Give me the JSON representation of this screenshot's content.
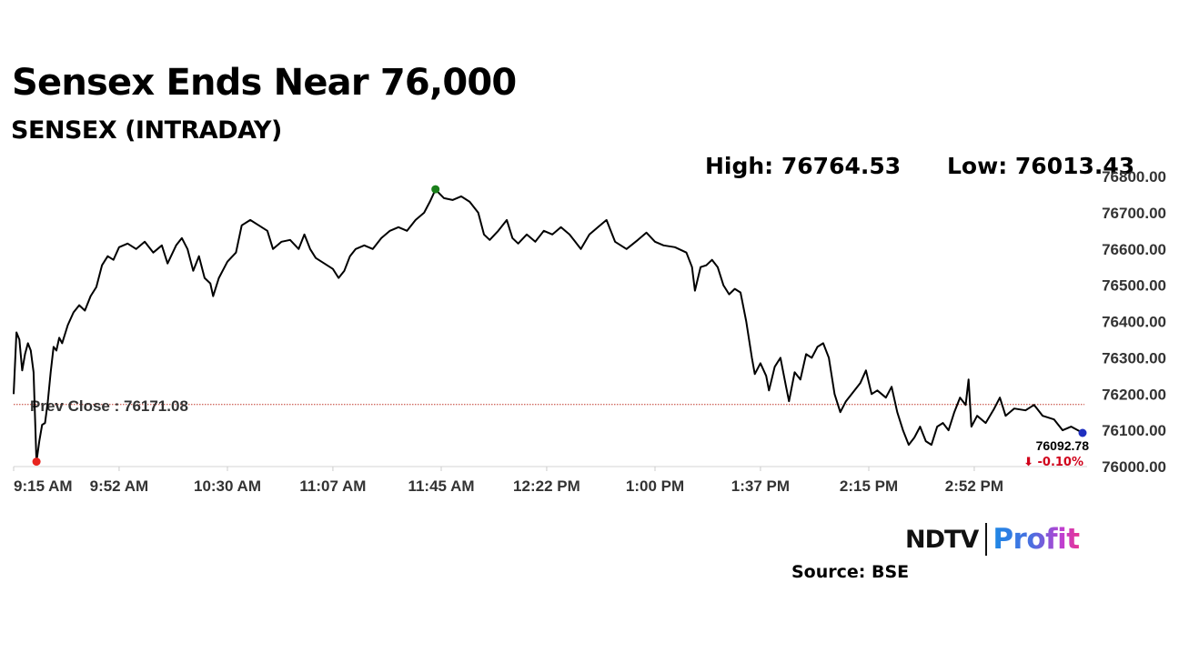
{
  "title": "Sensex Ends Near 76,000",
  "subtitle": "SENSEX (INTRADAY)",
  "stats": {
    "high": "High: 76764.53",
    "low": "Low: 76013.43"
  },
  "source": "Source: BSE",
  "logo": {
    "ndtv": "NDTV",
    "profit": "Profit"
  },
  "colors": {
    "line": "#000000",
    "prev_close": "#c0392b",
    "high_marker": "#1a7f1a",
    "low_marker": "#e8251f",
    "last_marker": "#1f2fbf",
    "change_negative": "#d0021b",
    "axis_text": "#333333"
  },
  "chart_data": {
    "type": "line",
    "title": "SENSEX (INTRADAY)",
    "xlabel": "",
    "ylabel": "",
    "x_ticks": [
      "9:15 AM",
      "9:52 AM",
      "10:30 AM",
      "11:07 AM",
      "11:45 AM",
      "12:22 PM",
      "1:00 PM",
      "1:37 PM",
      "2:15 PM",
      "2:52 PM"
    ],
    "y_ticks": [
      "76000.00",
      "76100.00",
      "76200.00",
      "76300.00",
      "76400.00",
      "76500.00",
      "76600.00",
      "76700.00",
      "76800.00"
    ],
    "ylim": [
      76000,
      76800
    ],
    "x_range": [
      "9:15 AM",
      "3:30 PM"
    ],
    "grid": false,
    "prev_close": 76171.08,
    "prev_close_label": "Prev Close : 76171.08",
    "high": 76764.53,
    "high_time": "11:43 AM",
    "low": 76013.43,
    "low_time": "9:23 AM",
    "last_value": 76092.78,
    "last_value_label": "76092.78",
    "change_label": "⬇ -0.10%",
    "series": [
      {
        "points": [
          [
            "9:15 AM",
            76200
          ],
          [
            "9:16 AM",
            76370
          ],
          [
            "9:17 AM",
            76350
          ],
          [
            "9:18 AM",
            76265
          ],
          [
            "9:19 AM",
            76310
          ],
          [
            "9:20 AM",
            76340
          ],
          [
            "9:21 AM",
            76320
          ],
          [
            "9:22 AM",
            76260
          ],
          [
            "9:23 AM",
            76013
          ],
          [
            "9:24 AM",
            76070
          ],
          [
            "9:25 AM",
            76115
          ],
          [
            "9:26 AM",
            76120
          ],
          [
            "9:27 AM",
            76180
          ],
          [
            "9:28 AM",
            76260
          ],
          [
            "9:29 AM",
            76330
          ],
          [
            "9:30 AM",
            76320
          ],
          [
            "9:31 AM",
            76355
          ],
          [
            "9:32 AM",
            76340
          ],
          [
            "9:34 AM",
            76390
          ],
          [
            "9:36 AM",
            76425
          ],
          [
            "9:38 AM",
            76445
          ],
          [
            "9:40 AM",
            76430
          ],
          [
            "9:42 AM",
            76470
          ],
          [
            "9:44 AM",
            76495
          ],
          [
            "9:46 AM",
            76555
          ],
          [
            "9:48 AM",
            76580
          ],
          [
            "9:50 AM",
            76570
          ],
          [
            "9:52 AM",
            76605
          ],
          [
            "9:55 AM",
            76615
          ],
          [
            "9:58 AM",
            76600
          ],
          [
            "10:01 AM",
            76620
          ],
          [
            "10:04 AM",
            76590
          ],
          [
            "10:07 AM",
            76610
          ],
          [
            "10:09 AM",
            76560
          ],
          [
            "10:12 AM",
            76610
          ],
          [
            "10:14 AM",
            76630
          ],
          [
            "10:16 AM",
            76600
          ],
          [
            "10:18 AM",
            76540
          ],
          [
            "10:20 AM",
            76580
          ],
          [
            "10:22 AM",
            76520
          ],
          [
            "10:24 AM",
            76505
          ],
          [
            "10:25 AM",
            76470
          ],
          [
            "10:27 AM",
            76520
          ],
          [
            "10:30 AM",
            76565
          ],
          [
            "10:33 AM",
            76590
          ],
          [
            "10:35 AM",
            76665
          ],
          [
            "10:38 AM",
            76680
          ],
          [
            "10:41 AM",
            76665
          ],
          [
            "10:44 AM",
            76650
          ],
          [
            "10:46 AM",
            76600
          ],
          [
            "10:49 AM",
            76620
          ],
          [
            "10:52 AM",
            76625
          ],
          [
            "10:55 AM",
            76600
          ],
          [
            "10:57 AM",
            76640
          ],
          [
            "10:59 AM",
            76600
          ],
          [
            "11:01 AM",
            76575
          ],
          [
            "11:04 AM",
            76560
          ],
          [
            "11:07 AM",
            76545
          ],
          [
            "11:09 AM",
            76520
          ],
          [
            "11:11 AM",
            76540
          ],
          [
            "11:13 AM",
            76580
          ],
          [
            "11:15 AM",
            76600
          ],
          [
            "11:18 AM",
            76610
          ],
          [
            "11:21 AM",
            76600
          ],
          [
            "11:24 AM",
            76630
          ],
          [
            "11:27 AM",
            76650
          ],
          [
            "11:30 AM",
            76660
          ],
          [
            "11:33 AM",
            76650
          ],
          [
            "11:36 AM",
            76680
          ],
          [
            "11:39 AM",
            76700
          ],
          [
            "11:41 AM",
            76730
          ],
          [
            "11:43 AM",
            76764
          ],
          [
            "11:46 AM",
            76740
          ],
          [
            "11:49 AM",
            76735
          ],
          [
            "11:52 AM",
            76745
          ],
          [
            "11:55 AM",
            76730
          ],
          [
            "11:58 AM",
            76700
          ],
          [
            "12:00 PM",
            76640
          ],
          [
            "12:02 PM",
            76625
          ],
          [
            "12:05 PM",
            76650
          ],
          [
            "12:08 PM",
            76680
          ],
          [
            "12:10 PM",
            76630
          ],
          [
            "12:12 PM",
            76615
          ],
          [
            "12:15 PM",
            76640
          ],
          [
            "12:18 PM",
            76620
          ],
          [
            "12:21 PM",
            76650
          ],
          [
            "12:24 PM",
            76640
          ],
          [
            "12:27 PM",
            76660
          ],
          [
            "12:30 PM",
            76640
          ],
          [
            "12:32 PM",
            76620
          ],
          [
            "12:34 PM",
            76600
          ],
          [
            "12:37 PM",
            76640
          ],
          [
            "12:40 PM",
            76660
          ],
          [
            "12:43 PM",
            76680
          ],
          [
            "12:46 PM",
            76620
          ],
          [
            "12:50 PM",
            76600
          ],
          [
            "12:54 PM",
            76625
          ],
          [
            "12:57 PM",
            76645
          ],
          [
            "1:00 PM",
            76620
          ],
          [
            "1:03 PM",
            76610
          ],
          [
            "1:07 PM",
            76605
          ],
          [
            "1:11 PM",
            76590
          ],
          [
            "1:13 PM",
            76550
          ],
          [
            "1:14 PM",
            76485
          ],
          [
            "1:16 PM",
            76550
          ],
          [
            "1:18 PM",
            76555
          ],
          [
            "1:20 PM",
            76570
          ],
          [
            "1:22 PM",
            76550
          ],
          [
            "1:24 PM",
            76500
          ],
          [
            "1:26 PM",
            76475
          ],
          [
            "1:28 PM",
            76490
          ],
          [
            "1:30 PM",
            76480
          ],
          [
            "1:32 PM",
            76400
          ],
          [
            "1:34 PM",
            76300
          ],
          [
            "1:35 PM",
            76255
          ],
          [
            "1:37 PM",
            76285
          ],
          [
            "1:39 PM",
            76250
          ],
          [
            "1:40 PM",
            76210
          ],
          [
            "1:42 PM",
            76275
          ],
          [
            "1:44 PM",
            76300
          ],
          [
            "1:46 PM",
            76220
          ],
          [
            "1:47 PM",
            76180
          ],
          [
            "1:49 PM",
            76260
          ],
          [
            "1:51 PM",
            76240
          ],
          [
            "1:53 PM",
            76310
          ],
          [
            "1:55 PM",
            76300
          ],
          [
            "1:57 PM",
            76330
          ],
          [
            "1:59 PM",
            76340
          ],
          [
            "2:01 PM",
            76300
          ],
          [
            "2:03 PM",
            76200
          ],
          [
            "2:05 PM",
            76150
          ],
          [
            "2:07 PM",
            76180
          ],
          [
            "2:09 PM",
            76200
          ],
          [
            "2:12 PM",
            76230
          ],
          [
            "2:14 PM",
            76265
          ],
          [
            "2:16 PM",
            76200
          ],
          [
            "2:18 PM",
            76210
          ],
          [
            "2:21 PM",
            76190
          ],
          [
            "2:23 PM",
            76220
          ],
          [
            "2:25 PM",
            76150
          ],
          [
            "2:27 PM",
            76100
          ],
          [
            "2:29 PM",
            76060
          ],
          [
            "2:31 PM",
            76080
          ],
          [
            "2:33 PM",
            76110
          ],
          [
            "2:35 PM",
            76070
          ],
          [
            "2:37 PM",
            76060
          ],
          [
            "2:39 PM",
            76110
          ],
          [
            "2:41 PM",
            76120
          ],
          [
            "2:43 PM",
            76100
          ],
          [
            "2:45 PM",
            76150
          ],
          [
            "2:47 PM",
            76190
          ],
          [
            "2:49 PM",
            76170
          ],
          [
            "2:50 PM",
            76240
          ],
          [
            "2:51 PM",
            76110
          ],
          [
            "2:53 PM",
            76140
          ],
          [
            "2:56 PM",
            76120
          ],
          [
            "2:59 PM",
            76160
          ],
          [
            "3:01 PM",
            76190
          ],
          [
            "3:03 PM",
            76140
          ],
          [
            "3:06 PM",
            76160
          ],
          [
            "3:10 PM",
            76155
          ],
          [
            "3:13 PM",
            76170
          ],
          [
            "3:16 PM",
            76140
          ],
          [
            "3:20 PM",
            76130
          ],
          [
            "3:23 PM",
            76100
          ],
          [
            "3:26 PM",
            76110
          ],
          [
            "3:30 PM",
            76093
          ]
        ]
      }
    ]
  }
}
